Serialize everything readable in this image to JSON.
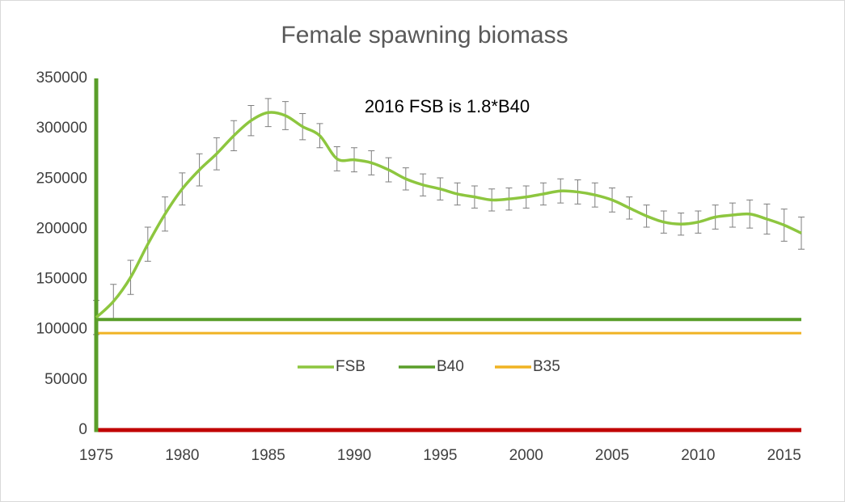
{
  "chart_data": {
    "type": "line",
    "title": "Female spawning biomass",
    "annotation": "2016 FSB is 1.8*B40",
    "x": [
      1975,
      1976,
      1977,
      1978,
      1979,
      1980,
      1981,
      1982,
      1983,
      1984,
      1985,
      1986,
      1987,
      1988,
      1989,
      1990,
      1991,
      1992,
      1993,
      1994,
      1995,
      1996,
      1997,
      1998,
      1999,
      2000,
      2001,
      2002,
      2003,
      2004,
      2005,
      2006,
      2007,
      2008,
      2009,
      2010,
      2011,
      2012,
      2013,
      2014,
      2015,
      2016
    ],
    "series": [
      {
        "name": "FSB",
        "color": "#8dc63f",
        "values": [
          112000,
          128000,
          152000,
          185000,
          215000,
          240000,
          259000,
          275000,
          293000,
          308000,
          316000,
          313000,
          302000,
          293000,
          270000,
          269000,
          266000,
          259000,
          250000,
          244000,
          240000,
          235000,
          232000,
          229000,
          230000,
          232000,
          235000,
          238000,
          237000,
          234000,
          229000,
          221000,
          213000,
          207000,
          205000,
          207000,
          212000,
          214000,
          215000,
          210000,
          204000,
          196000
        ],
        "errors": [
          17000,
          17000,
          17000,
          17000,
          17000,
          16000,
          16000,
          16000,
          15000,
          15000,
          14000,
          14000,
          13000,
          12000,
          12000,
          12000,
          12000,
          12000,
          11000,
          11000,
          11000,
          11000,
          11000,
          11000,
          11000,
          11000,
          11000,
          12000,
          12000,
          12000,
          12000,
          11000,
          11000,
          11000,
          11000,
          11000,
          12000,
          12000,
          14000,
          15000,
          16000,
          16000
        ]
      },
      {
        "name": "B40",
        "color": "#5a9e2a",
        "value": 110000
      },
      {
        "name": "B35",
        "color": "#f0b323",
        "value": 96500
      }
    ],
    "xlim": [
      1975,
      2016
    ],
    "xticks": [
      1975,
      1980,
      1985,
      1990,
      1995,
      2000,
      2005,
      2010,
      2015
    ],
    "ylim": [
      0,
      350000
    ],
    "yticks": [
      0,
      50000,
      100000,
      150000,
      200000,
      250000,
      300000,
      350000
    ],
    "x_axis_color": "#c00000",
    "y_axis_color": "#5a9e2a"
  }
}
